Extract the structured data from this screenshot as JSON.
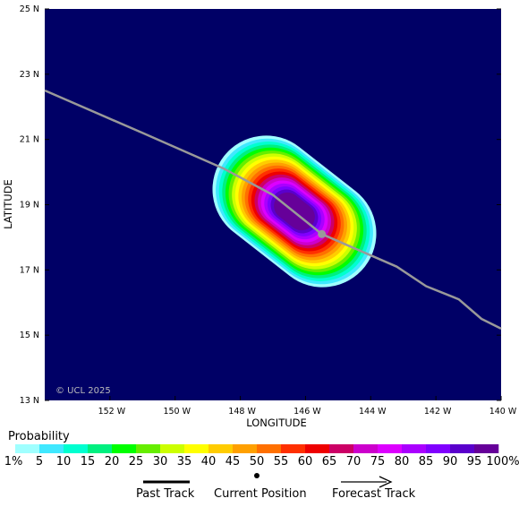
{
  "axes": {
    "x_label": "LONGITUDE",
    "y_label": "LATITUDE",
    "x_ticks": [
      "152 W",
      "150 W",
      "148 W",
      "146 W",
      "144 W",
      "142 W",
      "140 W"
    ],
    "y_ticks": [
      "25 N",
      "23 N",
      "21 N",
      "19 N",
      "17 N",
      "15 N",
      "13 N"
    ],
    "x_range_deg_east": [
      -154,
      -140
    ],
    "y_range_deg_north": [
      13,
      25
    ]
  },
  "watermark": "© UCL 2025",
  "colors": {
    "ocean": "#000066",
    "track": "#999999",
    "current_position": "#999999"
  },
  "track": {
    "points_lon_lat": [
      [
        -154.0,
        22.5
      ],
      [
        -151.0,
        21.2
      ],
      [
        -148.5,
        20.1
      ],
      [
        -147.0,
        19.3
      ],
      [
        -145.5,
        18.1
      ],
      [
        -143.2,
        17.1
      ],
      [
        -142.3,
        16.5
      ],
      [
        -141.3,
        16.1
      ],
      [
        -140.6,
        15.5
      ],
      [
        -140.0,
        15.2
      ]
    ],
    "current_position": [
      -145.5,
      18.1
    ]
  },
  "probability_field": {
    "description_levels_percent": [
      1,
      5,
      10,
      15,
      20,
      25,
      30,
      35,
      40,
      45,
      50,
      55,
      60,
      65,
      70,
      75,
      80,
      85,
      90,
      95,
      100
    ]
  },
  "legend": {
    "title": "Probability",
    "labels": [
      "1%",
      "5",
      "10",
      "15",
      "20",
      "25",
      "30",
      "35",
      "40",
      "45",
      "50",
      "55",
      "60",
      "65",
      "70",
      "75",
      "80",
      "85",
      "90",
      "95",
      "100%"
    ],
    "colors": [
      "#a0ffff",
      "#40e8ff",
      "#00ffd0",
      "#00f080",
      "#00ff00",
      "#66ee00",
      "#ccff00",
      "#ffff00",
      "#ffcc00",
      "#ffa000",
      "#ff7000",
      "#ff3000",
      "#ee0000",
      "#cc0066",
      "#cc00cc",
      "#dd00ff",
      "#aa00ff",
      "#8000ff",
      "#5a00cc",
      "#660099"
    ],
    "past_track": "Past Track",
    "current_position": "Current Position",
    "forecast_track": "Forecast Track"
  }
}
